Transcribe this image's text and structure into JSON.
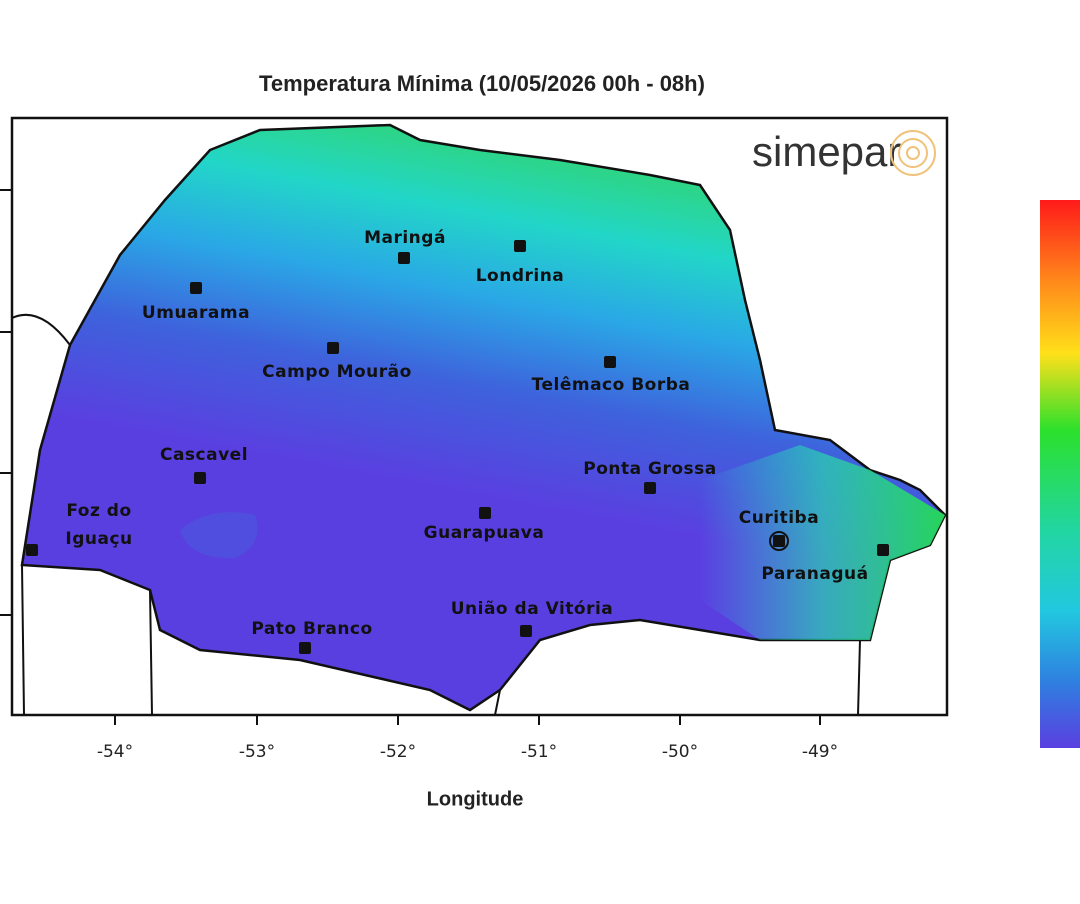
{
  "title": "Temperatura Mínima (10/05/2026 00h - 08h)",
  "logo": "simepar",
  "x_axis": {
    "label": "Longitude",
    "ticks": [
      "-54°",
      "-53°",
      "-52°",
      "-51°",
      "-50°",
      "-49°"
    ]
  },
  "cities": [
    {
      "lines": [
        "Maringá"
      ]
    },
    {
      "lines": [
        "Londrina"
      ]
    },
    {
      "lines": [
        "Umuarama"
      ]
    },
    {
      "lines": [
        "Campo Mourão"
      ]
    },
    {
      "lines": [
        "Telêmaco Borba"
      ]
    },
    {
      "lines": [
        "Cascavel"
      ]
    },
    {
      "lines": [
        "Ponta Grossa"
      ]
    },
    {
      "lines": [
        "Foz do",
        "Iguaçu"
      ]
    },
    {
      "lines": [
        "Guarapuava"
      ]
    },
    {
      "lines": [
        "Curitiba"
      ]
    },
    {
      "lines": [
        "Paranaguá"
      ]
    },
    {
      "lines": [
        "União da Vitória"
      ]
    },
    {
      "lines": [
        "Pato Branco"
      ]
    }
  ]
}
